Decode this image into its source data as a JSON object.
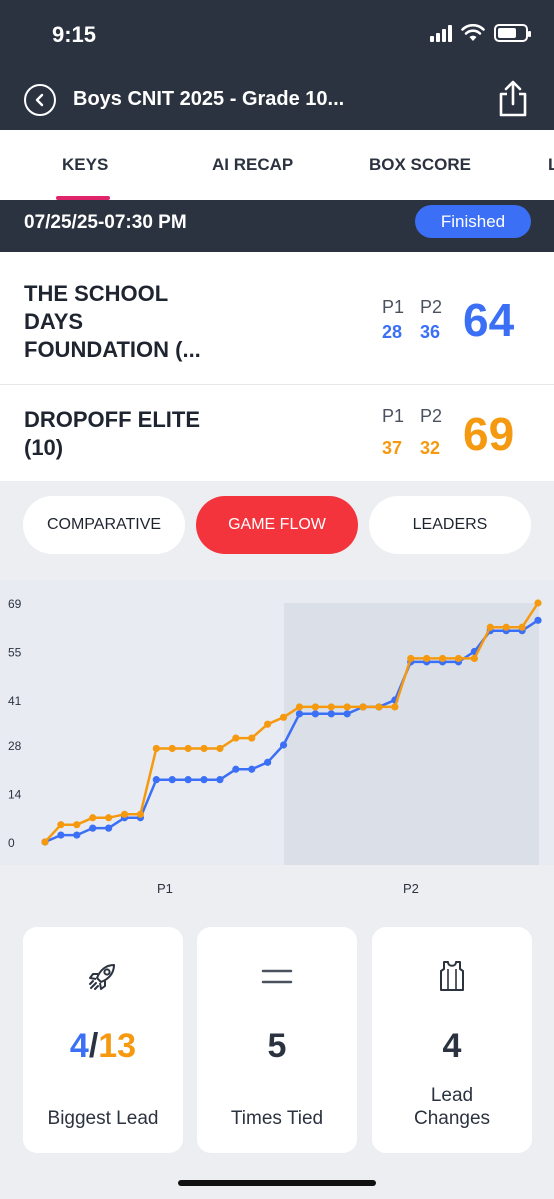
{
  "status": {
    "time": "9:15"
  },
  "nav": {
    "title": "Boys CNIT 2025 - Grade 10..."
  },
  "tabs": [
    "KEYS",
    "AI RECAP",
    "BOX SCORE",
    "L"
  ],
  "game": {
    "datetime": "07/25/25-07:30 PM",
    "status": "Finished"
  },
  "teams": [
    {
      "name_lines": [
        "THE SCHOOL",
        "DAYS",
        "FOUNDATION (..."
      ],
      "p1_label": "P1",
      "p2_label": "P2",
      "p1": "28",
      "p2": "36",
      "total": "64",
      "color": "#3b6ff5"
    },
    {
      "name_lines": [
        "DROPOFF ELITE",
        "(10)"
      ],
      "p1_label": "P1",
      "p2_label": "P2",
      "p1": "37",
      "p2": "32",
      "total": "69",
      "color": "#f59a10"
    }
  ],
  "segments": {
    "comparative": "COMPARATIVE",
    "game_flow": "GAME FLOW",
    "leaders": "LEADERS"
  },
  "chart_data": {
    "type": "line",
    "ytick_labels": [
      "69",
      "55",
      "41",
      "28",
      "14",
      "0"
    ],
    "yticks": [
      69,
      55,
      41,
      28,
      14,
      0
    ],
    "ylim": [
      0,
      69
    ],
    "period_labels": [
      "P1",
      "P2"
    ],
    "series": [
      {
        "color": "#3b6ff5",
        "values": [
          0,
          2,
          2,
          4,
          4,
          7,
          7,
          18,
          18,
          18,
          18,
          18,
          21,
          21,
          23,
          28,
          37,
          37,
          37,
          37,
          39,
          39,
          41,
          52,
          52,
          52,
          52,
          55,
          61,
          61,
          61,
          64
        ]
      },
      {
        "color": "#f59a10",
        "values": [
          0,
          5,
          5,
          7,
          7,
          8,
          8,
          27,
          27,
          27,
          27,
          27,
          30,
          30,
          34,
          36,
          39,
          39,
          39,
          39,
          39,
          39,
          39,
          53,
          53,
          53,
          53,
          53,
          62,
          62,
          62,
          69
        ]
      }
    ]
  },
  "stats": {
    "biggest_lead": {
      "blue": "4",
      "sep": "/",
      "orange": "13",
      "label": "Biggest Lead"
    },
    "times_tied": {
      "value": "5",
      "label": "Times Tied"
    },
    "lead_changes": {
      "value": "4",
      "label_lines": [
        "Lead",
        "Changes"
      ]
    }
  },
  "icons": {
    "back": "back-chevron-icon",
    "share": "share-icon",
    "rocket": "rocket-icon",
    "equals": "equals-icon",
    "jersey": "jersey-icon"
  }
}
